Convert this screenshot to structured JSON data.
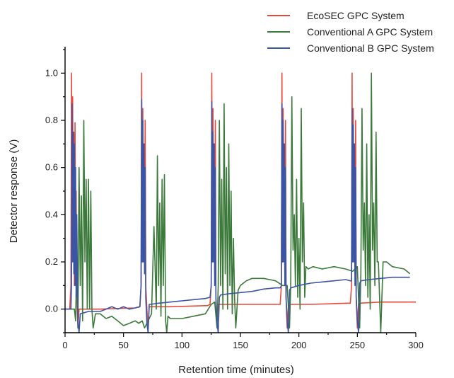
{
  "chart_data": {
    "type": "line",
    "xlabel": "Retention time (minutes)",
    "ylabel": "Detector response (V)",
    "xlim": [
      0,
      300
    ],
    "ylim": [
      -0.1,
      1.1
    ],
    "xticks": [
      0,
      50,
      100,
      150,
      200,
      250,
      300
    ],
    "yticks": [
      0.0,
      0.2,
      0.4,
      0.6,
      0.8,
      1.0
    ],
    "xtick_labels": [
      "0",
      "50",
      "100",
      "150",
      "200",
      "250",
      "300"
    ],
    "ytick_labels": [
      "0.0",
      "0.2",
      "0.4",
      "0.6",
      "0.8",
      "1.0"
    ],
    "grid": false,
    "legend_position": "top-right",
    "series": [
      {
        "name": "EcoSEC GPC System",
        "color": "#e8483c",
        "x": [
          0,
          4,
          5,
          5.5,
          6,
          6.5,
          7,
          7.5,
          8,
          8.5,
          9,
          9.5,
          10,
          11,
          12,
          30,
          60,
          64,
          65,
          65.5,
          66,
          66.5,
          67,
          67.5,
          68,
          68.5,
          69,
          70,
          71,
          72,
          90,
          122,
          124,
          125,
          125.5,
          126,
          126.5,
          127,
          127.5,
          128,
          128.5,
          129,
          130,
          131,
          132,
          150,
          182,
          184,
          185,
          185.5,
          186,
          186.5,
          187,
          187.5,
          188,
          188.5,
          189,
          190,
          191,
          192,
          210,
          242,
          244,
          245,
          245.5,
          246,
          246.5,
          247,
          247.5,
          248,
          248.5,
          249,
          250,
          251,
          252,
          270,
          300
        ],
        "y": [
          0.0,
          0.0,
          0.1,
          1.0,
          0.2,
          0.9,
          0.3,
          0.75,
          0.1,
          0.79,
          0.15,
          0.5,
          0.05,
          -0.08,
          0.0,
          0.0,
          0.005,
          0.01,
          0.1,
          1.0,
          0.2,
          0.85,
          0.3,
          0.7,
          0.2,
          0.8,
          0.1,
          0.0,
          -0.08,
          0.01,
          0.01,
          0.015,
          0.02,
          0.1,
          1.0,
          0.2,
          0.85,
          0.3,
          0.7,
          0.15,
          0.8,
          0.05,
          -0.08,
          0.02,
          0.02,
          0.02,
          0.02,
          0.02,
          0.1,
          1.0,
          0.2,
          0.85,
          0.3,
          0.7,
          0.15,
          0.8,
          0.05,
          -0.08,
          0.02,
          0.02,
          0.02,
          0.025,
          0.025,
          0.1,
          1.0,
          0.2,
          0.85,
          0.3,
          0.7,
          0.15,
          0.8,
          0.05,
          -0.08,
          0.025,
          0.025,
          0.03,
          0.03
        ]
      },
      {
        "name": "Conventional A GPC System",
        "color": "#3b7a3a",
        "x": [
          0,
          5,
          8,
          9,
          10,
          11,
          12,
          13,
          14,
          15,
          16,
          17,
          18,
          19,
          20,
          21,
          22,
          23,
          24,
          26,
          30,
          35,
          40,
          45,
          50,
          55,
          60,
          63,
          66,
          68,
          70,
          72,
          74,
          76,
          78,
          79,
          80,
          81,
          82,
          83,
          84,
          85,
          86,
          87,
          88,
          90,
          100,
          110,
          120,
          125,
          128,
          130,
          131,
          132,
          133,
          134,
          135,
          136,
          137,
          138,
          139,
          140,
          141,
          142,
          143,
          144,
          145,
          146,
          148,
          150,
          155,
          160,
          170,
          180,
          186,
          190,
          192,
          193,
          194,
          195,
          196,
          197,
          198,
          199,
          200,
          201,
          202,
          203,
          204,
          205,
          206,
          208,
          212,
          220,
          230,
          240,
          246,
          250,
          252,
          253,
          254,
          255,
          256,
          257,
          258,
          259,
          260,
          261,
          262,
          263,
          264,
          265,
          266,
          267,
          268,
          270,
          272,
          275,
          280,
          290,
          295
        ],
        "y": [
          0.0,
          0.0,
          0.0,
          -0.05,
          0.2,
          -0.08,
          0.6,
          0.1,
          0.48,
          -0.05,
          0.8,
          0.2,
          0.55,
          0.0,
          0.55,
          0.0,
          0.5,
          0.0,
          -0.08,
          -0.02,
          -0.02,
          -0.04,
          -0.03,
          -0.05,
          -0.07,
          -0.06,
          -0.05,
          -0.06,
          -0.05,
          -0.08,
          -0.06,
          -0.04,
          -0.02,
          0.35,
          0.0,
          0.65,
          0.1,
          0.45,
          -0.03,
          0.55,
          0.1,
          0.57,
          -0.05,
          -0.1,
          -0.03,
          -0.04,
          -0.04,
          -0.03,
          -0.02,
          0.02,
          0.03,
          -0.08,
          0.1,
          0.8,
          0.1,
          0.55,
          0.0,
          0.87,
          0.15,
          0.6,
          0.0,
          0.7,
          0.1,
          0.5,
          -0.02,
          0.3,
          0.05,
          -0.08,
          0.08,
          0.1,
          0.12,
          0.13,
          0.13,
          0.12,
          0.1,
          0.1,
          -0.08,
          0.1,
          0.9,
          0.25,
          0.4,
          0.1,
          0.55,
          0.05,
          0.3,
          0.0,
          0.85,
          0.2,
          0.45,
          0.05,
          0.18,
          0.17,
          0.18,
          0.17,
          0.18,
          0.17,
          0.16,
          0.18,
          -0.08,
          0.15,
          0.85,
          0.25,
          0.45,
          0.1,
          0.7,
          0.05,
          0.4,
          0.0,
          1.0,
          0.25,
          0.45,
          0.1,
          0.75,
          0.2,
          0.2,
          -0.1,
          0.2,
          0.2,
          0.18,
          0.17,
          0.15
        ]
      },
      {
        "name": "Conventional B GPC System",
        "color": "#3a55a4",
        "x": [
          0,
          5,
          5.5,
          6,
          6.5,
          7,
          7.5,
          8,
          8.5,
          9,
          9.5,
          10,
          11,
          12,
          13,
          20,
          30,
          35,
          40,
          45,
          50,
          55,
          60,
          64,
          65,
          65.5,
          66,
          66.5,
          67,
          67.5,
          68,
          68.5,
          69,
          70,
          71,
          72,
          73,
          80,
          90,
          100,
          110,
          120,
          124,
          125,
          125.5,
          126,
          126.5,
          127,
          127.5,
          128,
          128.5,
          129,
          130,
          131,
          132,
          133,
          140,
          150,
          160,
          170,
          180,
          184,
          185,
          185.5,
          186,
          186.5,
          187,
          187.5,
          188,
          188.5,
          189,
          190,
          191,
          192,
          193,
          200,
          210,
          220,
          230,
          240,
          244,
          245,
          245.5,
          246,
          246.5,
          247,
          247.5,
          248,
          248.5,
          249,
          250,
          251,
          252,
          253,
          260,
          270,
          280,
          290,
          295
        ],
        "y": [
          0.0,
          0.0,
          0.1,
          0.87,
          0.2,
          0.75,
          0.15,
          0.7,
          0.1,
          0.6,
          0.05,
          0.4,
          -0.05,
          -0.1,
          -0.02,
          -0.01,
          -0.01,
          0.0,
          0.01,
          0.0,
          0.01,
          0.0,
          0.005,
          0.01,
          0.1,
          0.89,
          0.2,
          0.8,
          0.2,
          0.7,
          0.15,
          0.6,
          0.05,
          -0.06,
          -0.1,
          0.02,
          0.02,
          0.025,
          0.03,
          0.035,
          0.04,
          0.045,
          0.05,
          0.1,
          0.88,
          0.2,
          0.75,
          0.2,
          0.7,
          0.1,
          0.6,
          0.05,
          -0.06,
          -0.1,
          0.05,
          0.06,
          0.065,
          0.07,
          0.075,
          0.085,
          0.09,
          0.09,
          0.1,
          0.87,
          0.2,
          0.8,
          0.2,
          0.7,
          0.1,
          0.6,
          0.05,
          -0.05,
          -0.1,
          0.08,
          0.09,
          0.1,
          0.11,
          0.115,
          0.12,
          0.125,
          0.12,
          0.12,
          0.85,
          0.2,
          0.78,
          0.2,
          0.7,
          0.1,
          0.6,
          0.05,
          -0.05,
          -0.1,
          0.11,
          0.12,
          0.125,
          0.13,
          0.135,
          0.135,
          0.135
        ]
      }
    ]
  }
}
